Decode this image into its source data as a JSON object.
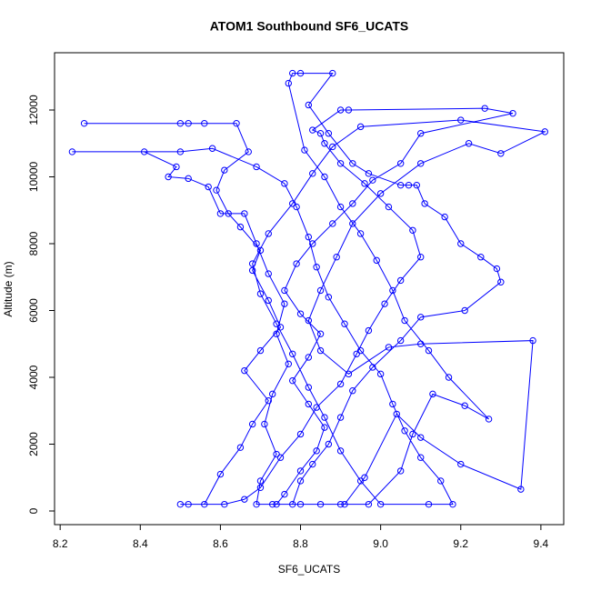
{
  "chart_data": {
    "type": "line",
    "markers": true,
    "title": "ATOM1 Southbound SF6_UCATS",
    "x_label": "SF6_UCATS",
    "y_label": "Altitude (m)",
    "color": "#0000ff",
    "xlim": [
      8.186,
      9.457
    ],
    "ylim": [
      -408,
      13714
    ],
    "xticks": [
      8.2,
      8.4,
      8.6,
      8.8,
      {
        "value": 9,
        "label": "9.0"
      },
      9.2,
      9.4
    ],
    "yticks": [
      0,
      2000,
      4000,
      6000,
      8000,
      10000,
      12000
    ],
    "x": [
      8.26,
      8.5,
      8.52,
      8.56,
      8.64,
      8.67,
      8.61,
      8.59,
      8.62,
      8.65,
      8.7,
      8.68,
      8.72,
      8.75,
      8.7,
      8.66,
      8.72,
      8.68,
      8.65,
      8.6,
      8.56,
      8.52,
      8.5,
      8.61,
      8.66,
      8.7,
      8.75,
      8.8,
      8.84,
      8.9,
      8.94,
      8.97,
      9.01,
      9.05,
      9.1,
      9.08,
      9.02,
      8.96,
      8.9,
      8.86,
      8.85,
      8.83,
      8.9,
      8.92,
      9.26,
      9.33,
      9.1,
      9.05,
      8.98,
      8.93,
      8.88,
      8.83,
      8.79,
      8.76,
      8.8,
      8.85,
      8.82,
      8.78,
      8.82,
      8.86,
      8.84,
      8.8,
      8.76,
      8.74,
      8.9,
      8.97,
      9.05,
      9.08,
      9.13,
      9.21,
      9.27,
      9.17,
      9.12,
      9.06,
      9.03,
      8.99,
      8.95,
      8.9,
      8.86,
      8.81,
      8.77,
      8.78,
      8.8,
      8.88,
      8.82,
      8.87,
      8.93,
      8.97,
      9.05,
      9.07,
      9.09,
      9.11,
      9.16,
      9.2,
      9.25,
      9.29,
      9.3,
      9.21,
      9.1,
      9.05,
      8.98,
      8.93,
      8.9,
      8.87,
      8.83,
      8.8,
      8.78,
      8.73,
      8.69,
      8.7,
      8.74,
      8.71,
      8.73,
      8.77,
      8.74,
      8.76,
      8.72,
      8.69,
      8.66,
      8.6,
      8.57,
      8.52,
      8.47,
      8.49,
      8.41,
      8.23,
      8.5,
      8.58,
      8.69,
      8.76,
      8.79,
      8.82,
      8.84,
      8.87,
      8.91,
      8.95,
      9.0,
      9.03,
      9.06,
      9.1,
      9.15,
      9.18,
      9.12,
      9.0,
      8.95,
      8.9,
      8.86,
      8.82,
      8.78,
      8.74,
      8.7,
      8.68,
      8.72,
      8.78,
      8.83,
      8.88,
      8.95,
      9.2,
      9.41,
      9.3,
      9.22,
      9.1,
      9.0,
      8.93,
      8.89,
      8.85,
      8.82,
      8.85,
      8.92,
      9.02,
      9.1,
      9.38,
      9.35,
      9.2,
      9.1,
      9.04,
      8.96,
      8.91,
      8.85,
      8.8
    ],
    "values": [
      11600,
      11600,
      11600,
      11600,
      11600,
      10750,
      10200,
      9600,
      8900,
      8500,
      7800,
      7200,
      6300,
      5500,
      4800,
      4200,
      3300,
      2600,
      1900,
      1100,
      200,
      200,
      200,
      200,
      350,
      700,
      1600,
      2300,
      3100,
      3800,
      4700,
      5400,
      6200,
      6900,
      7600,
      8400,
      9100,
      9800,
      10400,
      11000,
      11300,
      11400,
      12000,
      12000,
      12050,
      11900,
      11300,
      10400,
      9900,
      9200,
      8600,
      8000,
      7400,
      6600,
      5900,
      5300,
      4600,
      3900,
      3200,
      2500,
      1800,
      1200,
      500,
      200,
      200,
      200,
      1200,
      2300,
      3500,
      3150,
      2750,
      4000,
      4800,
      5700,
      6600,
      7500,
      8300,
      9100,
      10000,
      10800,
      12800,
      13100,
      13100,
      13100,
      12150,
      11300,
      10400,
      10100,
      9750,
      9750,
      9750,
      9200,
      8800,
      8000,
      7600,
      7250,
      6850,
      6000,
      5800,
      5100,
      4300,
      3600,
      2800,
      2000,
      1400,
      900,
      200,
      200,
      200,
      900,
      1700,
      2600,
      3500,
      4400,
      5300,
      6200,
      7100,
      8000,
      8900,
      8900,
      9700,
      9950,
      10000,
      10300,
      10750,
      10750,
      10750,
      10850,
      10300,
      9800,
      9100,
      8200,
      7300,
      6400,
      5600,
      4800,
      4100,
      3200,
      2400,
      1600,
      900,
      200,
      200,
      200,
      900,
      1800,
      2800,
      3700,
      4700,
      5600,
      6500,
      7400,
      8300,
      9200,
      10100,
      10900,
      11500,
      11700,
      11350,
      10700,
      11000,
      10400,
      9500,
      8600,
      7600,
      6600,
      5700,
      4800,
      4100,
      4900,
      5000,
      5100,
      650,
      1400,
      2200,
      2900,
      1000,
      200,
      200,
      200
    ]
  }
}
